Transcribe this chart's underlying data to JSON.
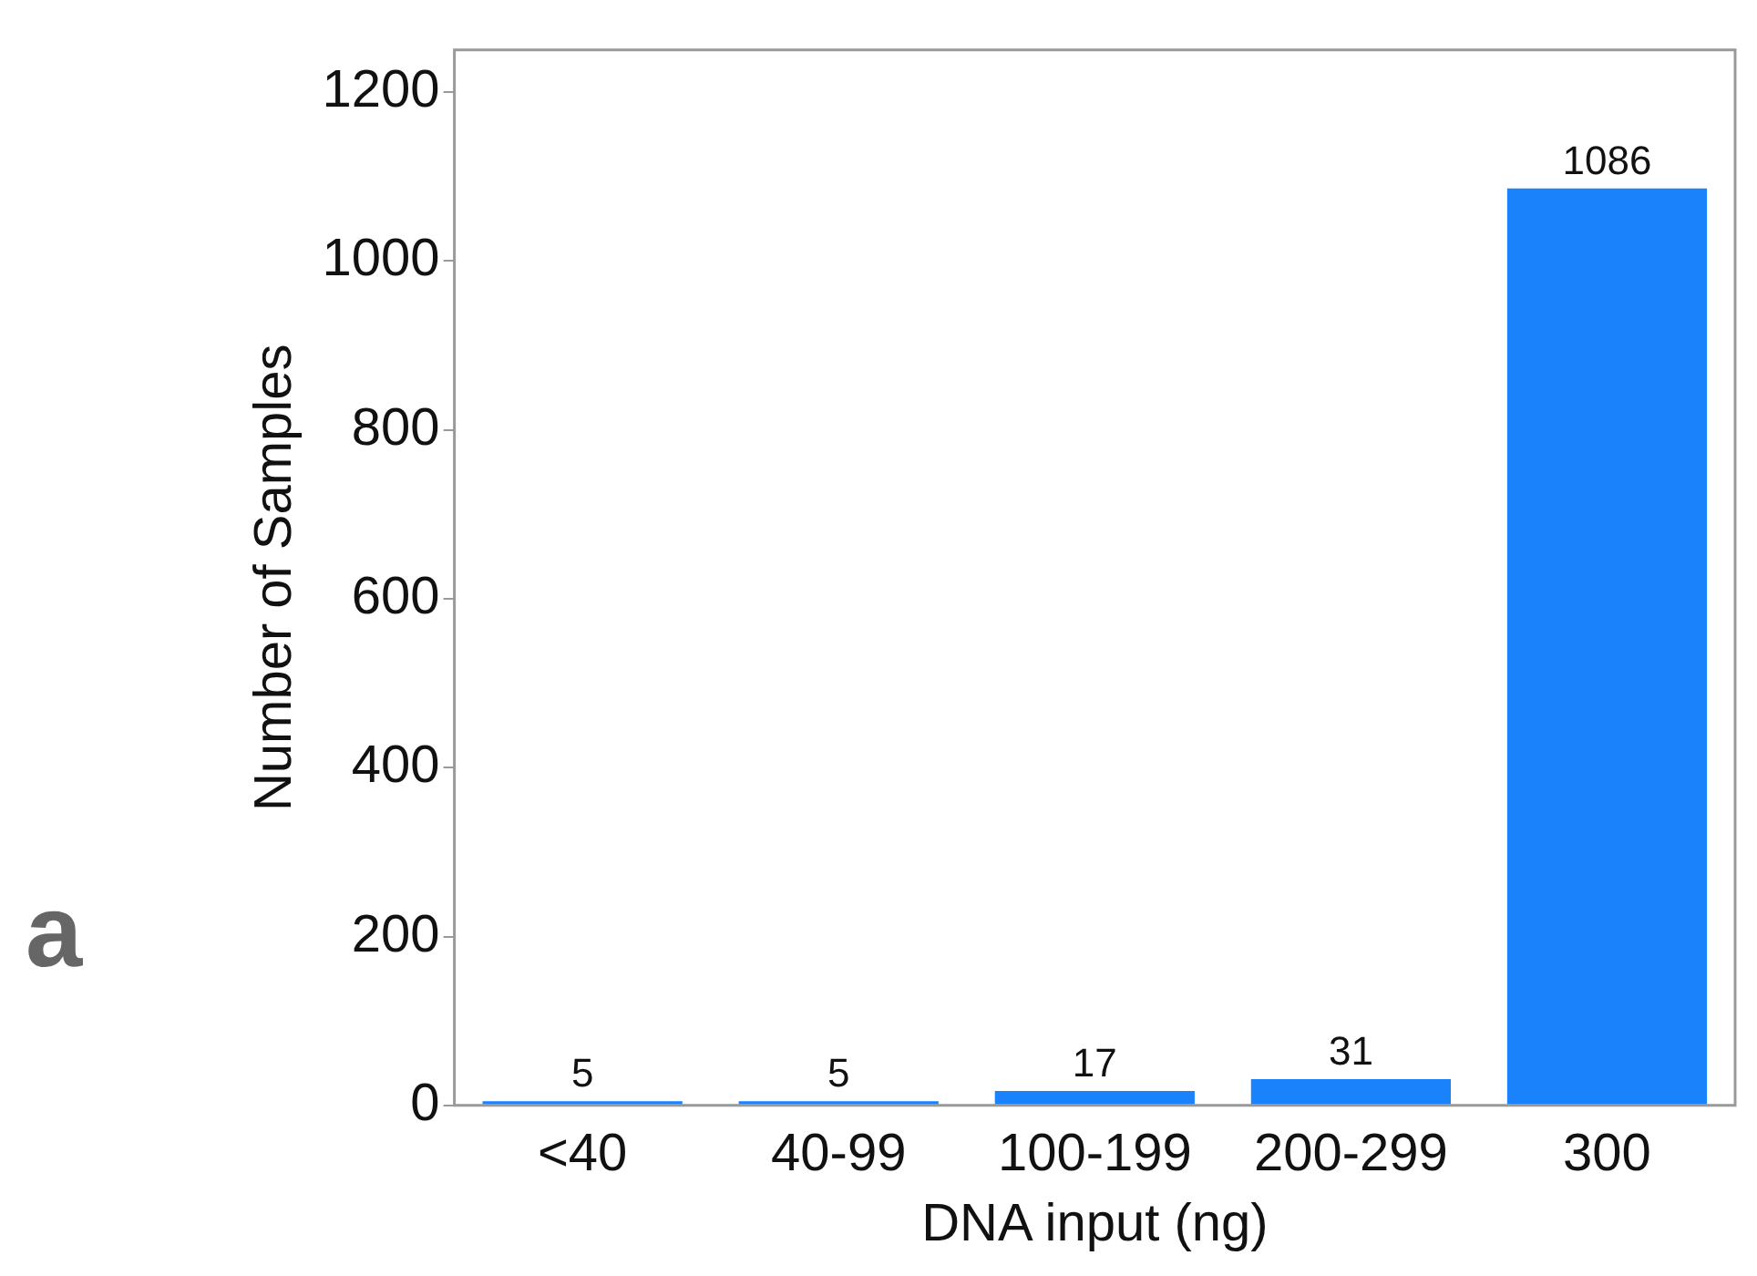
{
  "chart_data": {
    "type": "bar",
    "xlabel": "DNA input (ng)",
    "ylabel": "Number of Samples",
    "categories": [
      "<40",
      "40-99",
      "100-199",
      "200-299",
      "300"
    ],
    "values": [
      5,
      5,
      17,
      31,
      1086
    ],
    "color": "#1a82fb",
    "ylim": [
      0,
      1250
    ],
    "yticks": [
      0,
      200,
      400,
      600,
      800,
      1000,
      1200
    ],
    "data_labels": true,
    "grid": false,
    "legend": false,
    "annotations": [
      "a"
    ]
  }
}
